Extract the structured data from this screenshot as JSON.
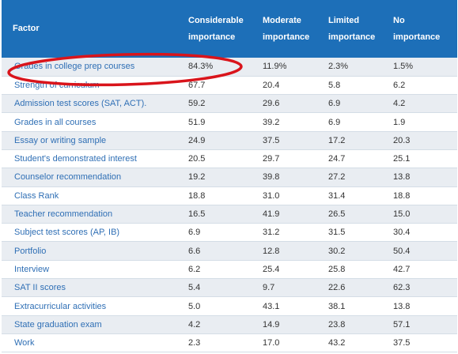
{
  "table": {
    "headers": [
      "Factor",
      "Considerable importance",
      "Moderate importance",
      "Limited importance",
      "No importance"
    ],
    "rows": [
      [
        "Grades in college prep courses",
        "84.3%",
        "11.9%",
        "2.3%",
        "1.5%"
      ],
      [
        "Strength of curriculum",
        "67.7",
        "20.4",
        "5.8",
        "6.2"
      ],
      [
        "Admission test scores (SAT, ACT).",
        "59.2",
        "29.6",
        "6.9",
        "4.2"
      ],
      [
        "Grades in all courses",
        "51.9",
        "39.2",
        "6.9",
        "1.9"
      ],
      [
        "Essay or writing sample",
        "24.9",
        "37.5",
        "17.2",
        "20.3"
      ],
      [
        "Student's demonstrated interest",
        "20.5",
        "29.7",
        "24.7",
        "25.1"
      ],
      [
        "Counselor recommendation",
        "19.2",
        "39.8",
        "27.2",
        "13.8"
      ],
      [
        "Class Rank",
        "18.8",
        "31.0",
        "31.4",
        "18.8"
      ],
      [
        "Teacher recommendation",
        "16.5",
        "41.9",
        "26.5",
        "15.0"
      ],
      [
        "Subject test scores (AP, IB)",
        "6.9",
        "31.2",
        "31.5",
        "30.4"
      ],
      [
        "Portfolio",
        "6.6",
        "12.8",
        "30.2",
        "50.4"
      ],
      [
        "Interview",
        "6.2",
        "25.4",
        "25.8",
        "42.7"
      ],
      [
        "SAT II scores",
        "5.4",
        "9.7",
        "22.6",
        "62.3"
      ],
      [
        "Extracurricular activities",
        "5.0",
        "43.1",
        "38.1",
        "13.8"
      ],
      [
        "State graduation exam",
        "4.2",
        "14.9",
        "23.8",
        "57.1"
      ],
      [
        "Work",
        "2.3",
        "17.0",
        "43.2",
        "37.5"
      ]
    ]
  },
  "colors": {
    "header_bg": "#1d6fb8",
    "header_text": "#ffffff",
    "factor_text": "#2f6fb5",
    "value_text": "#333333",
    "stripe": "#e9edf2",
    "annotation": "#d9141b"
  },
  "annotation": {
    "shape": "ellipse",
    "highlights": "Grades in college prep courses"
  }
}
